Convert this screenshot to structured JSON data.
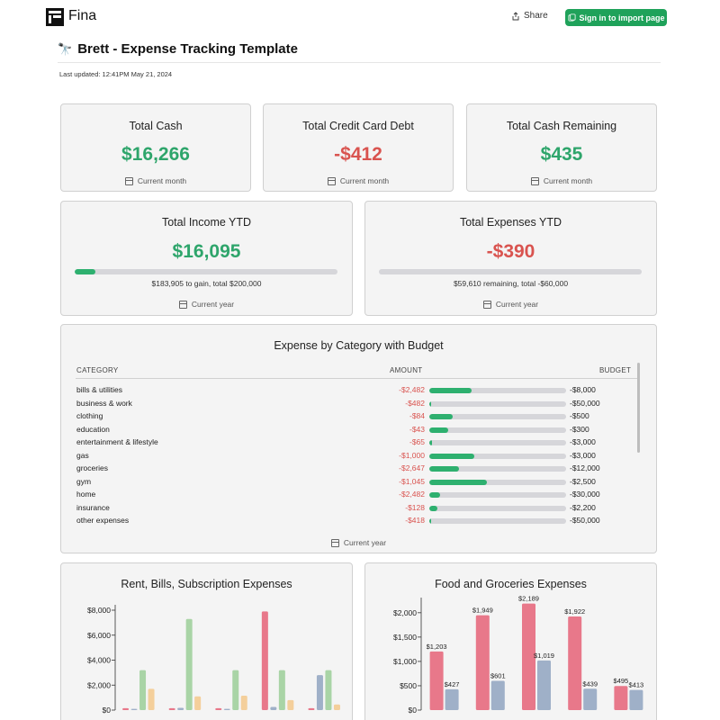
{
  "app": {
    "name": "Fina"
  },
  "header": {
    "share_label": "Share",
    "signin_label": "Sign in to import page"
  },
  "page": {
    "title": "Brett - Expense Tracking Template",
    "updated": "Last updated: 12:41PM May 21, 2024"
  },
  "colors": {
    "green": "#2ea56b",
    "red": "#d9534f",
    "accent": "#1fa25a"
  },
  "cards": {
    "total_cash": {
      "title": "Total Cash",
      "value": "$16,266",
      "footer": "Current month"
    },
    "credit_debt": {
      "title": "Total Credit Card Debt",
      "value": "-$412",
      "footer": "Current month"
    },
    "cash_remaining": {
      "title": "Total Cash Remaining",
      "value": "$435",
      "footer": "Current month"
    },
    "income_ytd": {
      "title": "Total Income YTD",
      "value": "$16,095",
      "progress": 0.08,
      "detail": "$183,905 to gain, total $200,000",
      "footer": "Current year"
    },
    "expenses_ytd": {
      "title": "Total Expenses YTD",
      "value": "-$390",
      "progress": 0.0,
      "detail": "$59,610 remaining, total -$60,000",
      "footer": "Current year"
    }
  },
  "budget_table": {
    "title": "Expense by Category with Budget",
    "headers": {
      "category": "CATEGORY",
      "amount": "AMOUNT",
      "budget": "BUDGET"
    },
    "rows": [
      {
        "category": "bills & utilities",
        "amount": "-$2,482",
        "budget": "-$8,000",
        "fraction": 0.31
      },
      {
        "category": "business & work",
        "amount": "-$482",
        "budget": "-$50,000",
        "fraction": 0.01
      },
      {
        "category": "clothing",
        "amount": "-$84",
        "budget": "-$500",
        "fraction": 0.17
      },
      {
        "category": "education",
        "amount": "-$43",
        "budget": "-$300",
        "fraction": 0.14
      },
      {
        "category": "entertainment & lifestyle",
        "amount": "-$65",
        "budget": "-$3,000",
        "fraction": 0.02
      },
      {
        "category": "gas",
        "amount": "-$1,000",
        "budget": "-$3,000",
        "fraction": 0.33
      },
      {
        "category": "groceries",
        "amount": "-$2,647",
        "budget": "-$12,000",
        "fraction": 0.22
      },
      {
        "category": "gym",
        "amount": "-$1,045",
        "budget": "-$2,500",
        "fraction": 0.42
      },
      {
        "category": "home",
        "amount": "-$2,482",
        "budget": "-$30,000",
        "fraction": 0.08
      },
      {
        "category": "insurance",
        "amount": "-$128",
        "budget": "-$2,200",
        "fraction": 0.06
      },
      {
        "category": "other expenses",
        "amount": "-$418",
        "budget": "-$50,000",
        "fraction": 0.01
      }
    ],
    "footer": "Current year"
  },
  "chart_data": [
    {
      "type": "bar",
      "title": "Rent, Bills, Subscription Expenses",
      "ylim": [
        0,
        8000
      ],
      "yticks": [
        "$0",
        "$2,000",
        "$4,000",
        "$6,000",
        "$8,000"
      ],
      "groups": [
        [
          {
            "v": 150,
            "c": "#e8788a"
          },
          {
            "v": 100,
            "c": "#9fb0c8"
          },
          {
            "v": 3200,
            "c": "#a9d4a6"
          },
          {
            "v": 1700,
            "c": "#f4cf9b"
          }
        ],
        [
          {
            "v": 150,
            "c": "#e8788a"
          },
          {
            "v": 180,
            "c": "#9fb0c8"
          },
          {
            "v": 7300,
            "c": "#a9d4a6"
          },
          {
            "v": 1100,
            "c": "#f4cf9b"
          }
        ],
        [
          {
            "v": 150,
            "c": "#e8788a"
          },
          {
            "v": 100,
            "c": "#9fb0c8"
          },
          {
            "v": 3200,
            "c": "#a9d4a6"
          },
          {
            "v": 1150,
            "c": "#f4cf9b"
          }
        ],
        [
          {
            "v": 7900,
            "c": "#e8788a"
          },
          {
            "v": 250,
            "c": "#9fb0c8"
          },
          {
            "v": 3200,
            "c": "#a9d4a6"
          },
          {
            "v": 800,
            "c": "#f4cf9b"
          }
        ],
        [
          {
            "v": 150,
            "c": "#e8788a"
          },
          {
            "v": 2800,
            "c": "#9fb0c8"
          },
          {
            "v": 3200,
            "c": "#a9d4a6"
          },
          {
            "v": 450,
            "c": "#f4cf9b"
          }
        ]
      ]
    },
    {
      "type": "bar",
      "title": "Food and Groceries Expenses",
      "ylim": [
        0,
        2200
      ],
      "yticks": [
        "$0",
        "$500",
        "$1,000",
        "$1,500",
        "$2,000"
      ],
      "groups": [
        [
          {
            "v": 1203,
            "c": "#e8788a",
            "label": "$1,203"
          },
          {
            "v": 427,
            "c": "#9fb0c8",
            "label": "$427"
          }
        ],
        [
          {
            "v": 1949,
            "c": "#e8788a",
            "label": "$1,949"
          },
          {
            "v": 601,
            "c": "#9fb0c8",
            "label": "$601"
          }
        ],
        [
          {
            "v": 2189,
            "c": "#e8788a",
            "label": "$2,189"
          },
          {
            "v": 1019,
            "c": "#9fb0c8",
            "label": "$1,019"
          }
        ],
        [
          {
            "v": 1922,
            "c": "#e8788a",
            "label": "$1,922"
          },
          {
            "v": 439,
            "c": "#9fb0c8",
            "label": "$439"
          }
        ],
        [
          {
            "v": 495,
            "c": "#e8788a",
            "label": "$495"
          },
          {
            "v": 413,
            "c": "#9fb0c8",
            "label": "$413"
          }
        ]
      ]
    }
  ]
}
